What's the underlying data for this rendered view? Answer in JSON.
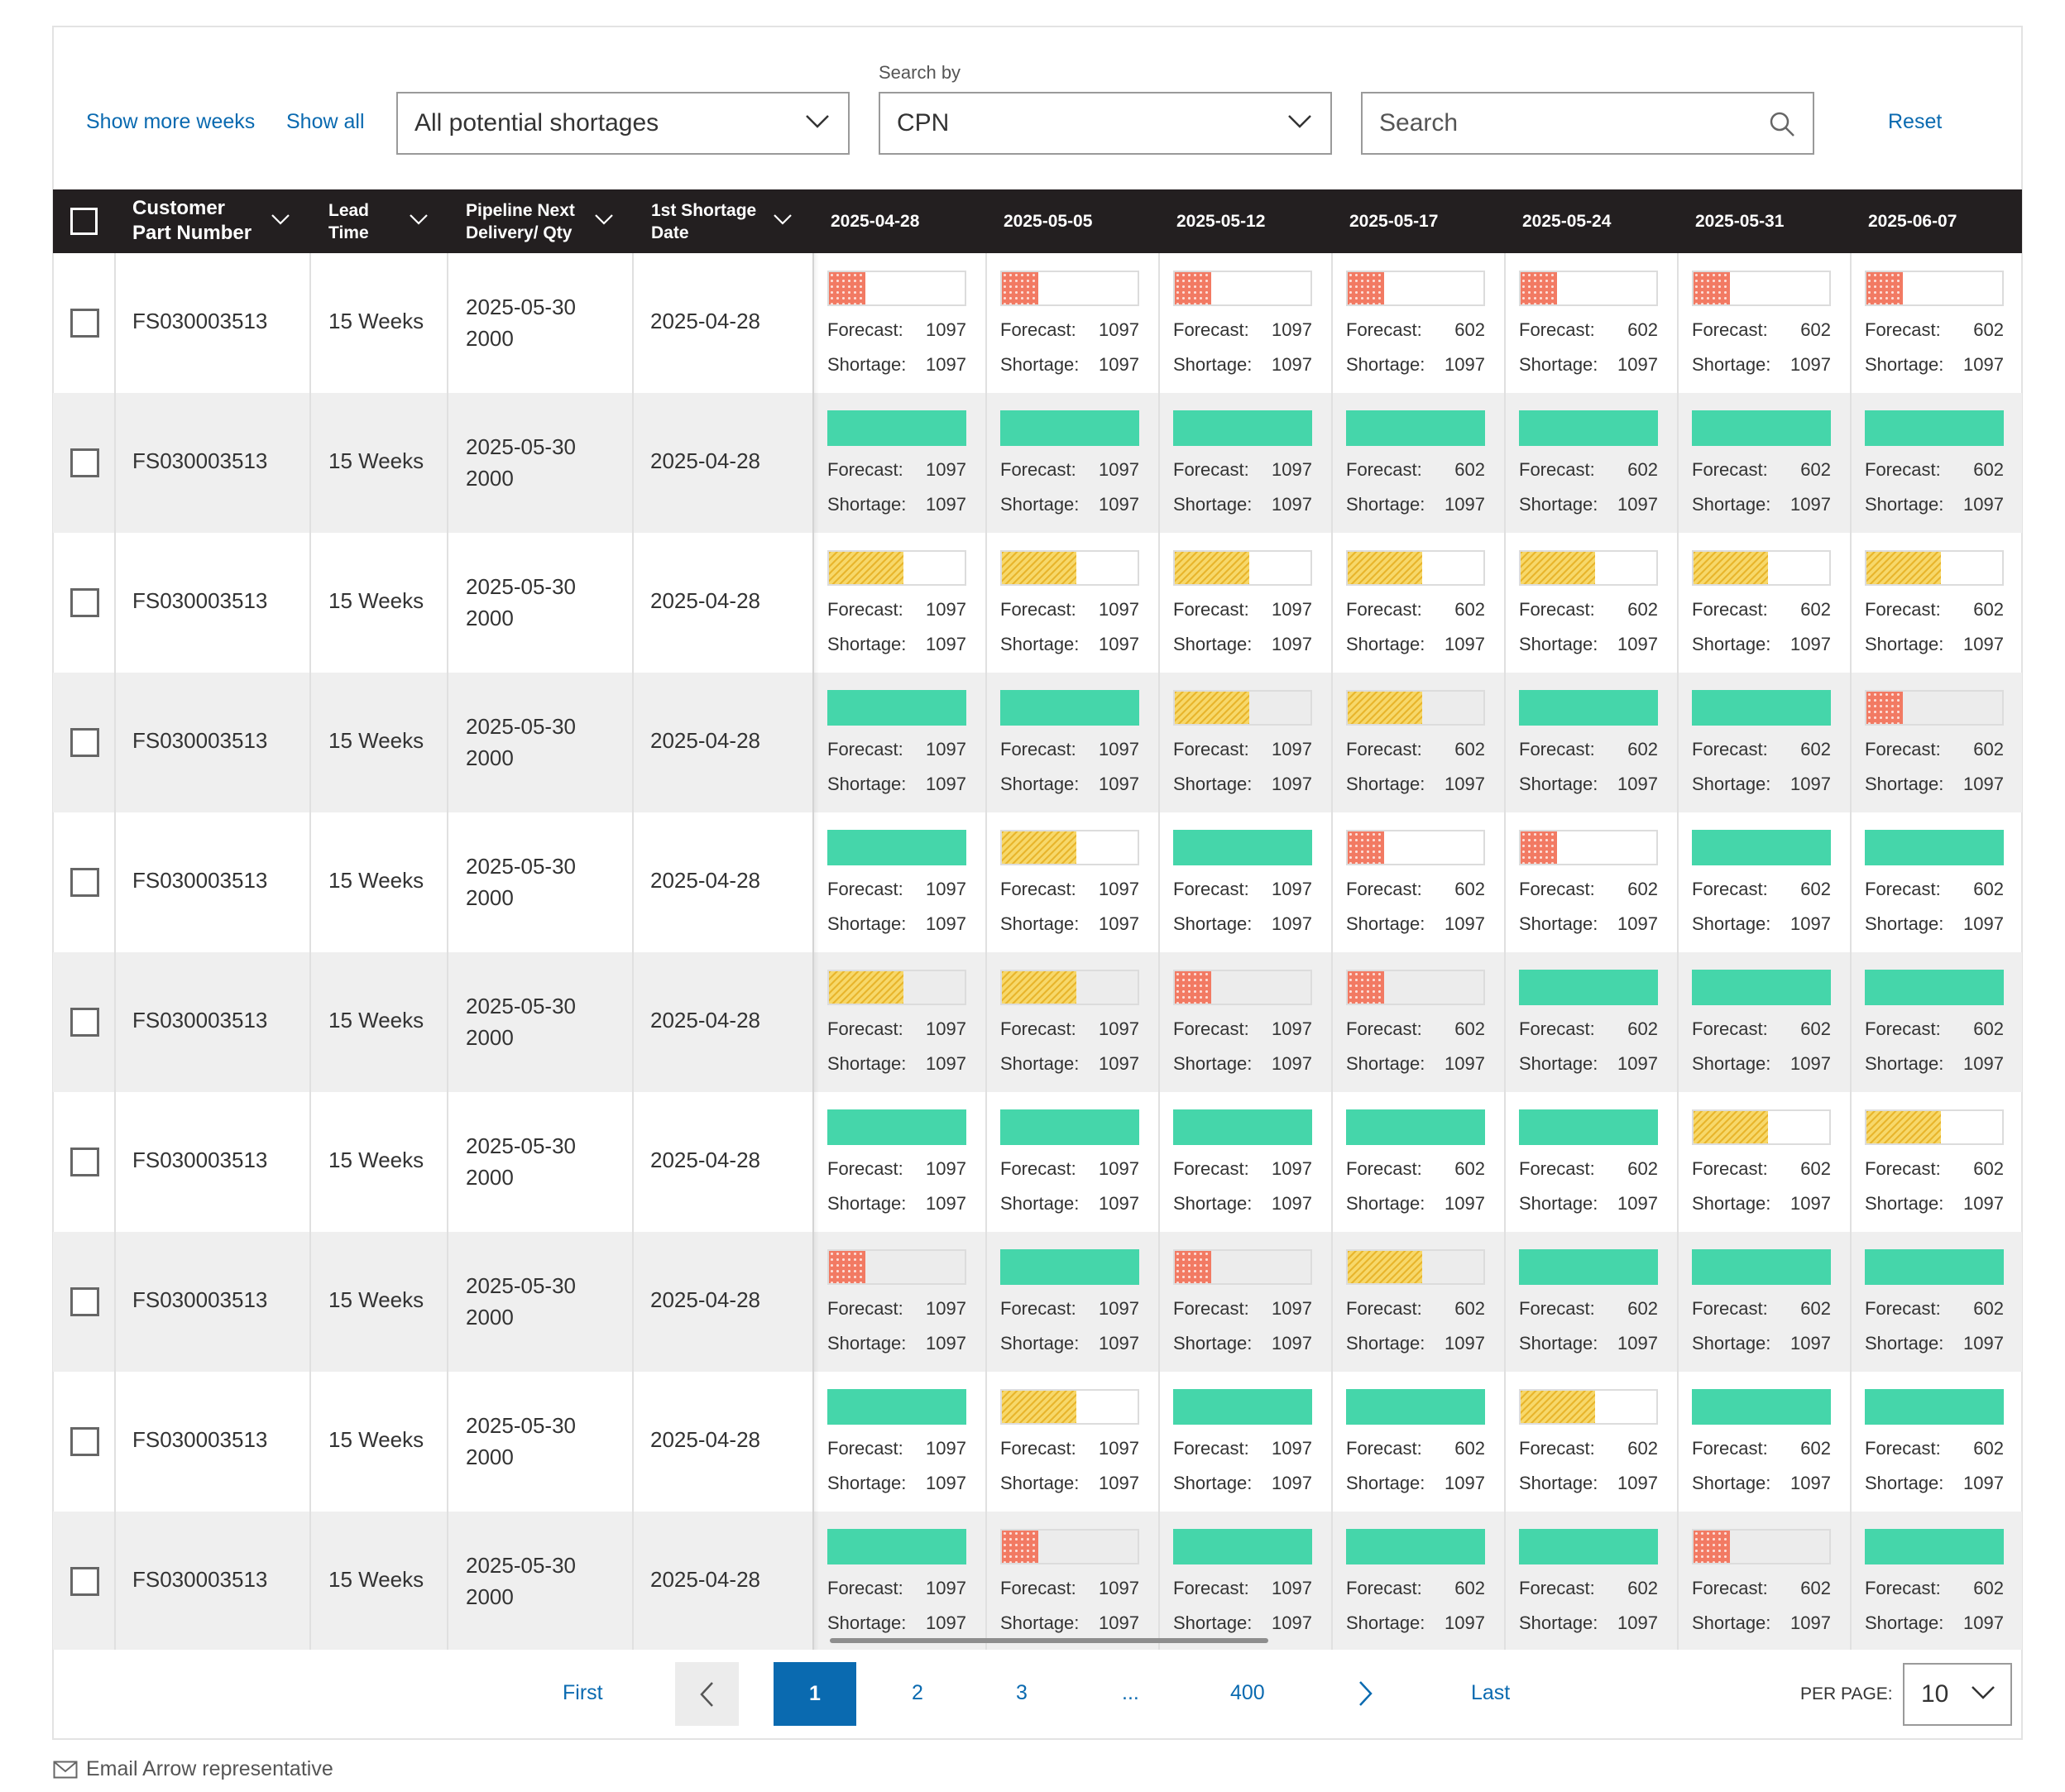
{
  "toolbar": {
    "show_more_weeks": "Show more weeks",
    "show_all": "Show all",
    "filter_select_value": "All potential shortages",
    "search_by_label": "Search by",
    "search_by_value": "CPN",
    "search_placeholder": "Search",
    "reset": "Reset"
  },
  "table": {
    "headers": {
      "cpn_line1": "Customer",
      "cpn_line2": "Part Number",
      "lead_line1": "Lead",
      "lead_line2": "Time",
      "pipeline_line1": "Pipeline Next",
      "pipeline_line2": "Delivery/ Qty",
      "shortage_line1": "1st Shortage",
      "shortage_line2": "Date",
      "weeks": [
        "2025-04-28",
        "2025-05-05",
        "2025-05-12",
        "2025-05-17",
        "2025-05-24",
        "2025-05-31",
        "2025-06-07"
      ]
    },
    "forecast_label": "Forecast:",
    "shortage_label": "Shortage:",
    "status_colors": {
      "green": "#45d6aa",
      "yellow": "#f5c84a",
      "red": "#f27a63"
    },
    "rows": [
      {
        "cpn": "FS030003513",
        "lead": "15 Weeks",
        "pipe_date": "2025-05-30",
        "pipe_qty": "2000",
        "first_shortage": "2025-04-28",
        "weeks": [
          {
            "status": "red",
            "fill": 0.27,
            "forecast": "1097",
            "shortage": "1097"
          },
          {
            "status": "red",
            "fill": 0.27,
            "forecast": "1097",
            "shortage": "1097"
          },
          {
            "status": "red",
            "fill": 0.27,
            "forecast": "1097",
            "shortage": "1097"
          },
          {
            "status": "red",
            "fill": 0.27,
            "forecast": "602",
            "shortage": "1097"
          },
          {
            "status": "red",
            "fill": 0.27,
            "forecast": "602",
            "shortage": "1097"
          },
          {
            "status": "red",
            "fill": 0.27,
            "forecast": "602",
            "shortage": "1097"
          },
          {
            "status": "red",
            "fill": 0.27,
            "forecast": "602",
            "shortage": "1097"
          }
        ]
      },
      {
        "cpn": "FS030003513",
        "lead": "15 Weeks",
        "pipe_date": "2025-05-30",
        "pipe_qty": "2000",
        "first_shortage": "2025-04-28",
        "weeks": [
          {
            "status": "green",
            "fill": 1,
            "forecast": "1097",
            "shortage": "1097"
          },
          {
            "status": "green",
            "fill": 1,
            "forecast": "1097",
            "shortage": "1097"
          },
          {
            "status": "green",
            "fill": 1,
            "forecast": "1097",
            "shortage": "1097"
          },
          {
            "status": "green",
            "fill": 1,
            "forecast": "602",
            "shortage": "1097"
          },
          {
            "status": "green",
            "fill": 1,
            "forecast": "602",
            "shortage": "1097"
          },
          {
            "status": "green",
            "fill": 1,
            "forecast": "602",
            "shortage": "1097"
          },
          {
            "status": "green",
            "fill": 1,
            "forecast": "602",
            "shortage": "1097"
          }
        ]
      },
      {
        "cpn": "FS030003513",
        "lead": "15 Weeks",
        "pipe_date": "2025-05-30",
        "pipe_qty": "2000",
        "first_shortage": "2025-04-28",
        "weeks": [
          {
            "status": "yellow",
            "fill": 0.55,
            "forecast": "1097",
            "shortage": "1097"
          },
          {
            "status": "yellow",
            "fill": 0.55,
            "forecast": "1097",
            "shortage": "1097"
          },
          {
            "status": "yellow",
            "fill": 0.55,
            "forecast": "1097",
            "shortage": "1097"
          },
          {
            "status": "yellow",
            "fill": 0.55,
            "forecast": "602",
            "shortage": "1097"
          },
          {
            "status": "yellow",
            "fill": 0.55,
            "forecast": "602",
            "shortage": "1097"
          },
          {
            "status": "yellow",
            "fill": 0.55,
            "forecast": "602",
            "shortage": "1097"
          },
          {
            "status": "yellow",
            "fill": 0.55,
            "forecast": "602",
            "shortage": "1097"
          }
        ]
      },
      {
        "cpn": "FS030003513",
        "lead": "15 Weeks",
        "pipe_date": "2025-05-30",
        "pipe_qty": "2000",
        "first_shortage": "2025-04-28",
        "weeks": [
          {
            "status": "green",
            "fill": 1,
            "forecast": "1097",
            "shortage": "1097"
          },
          {
            "status": "green",
            "fill": 1,
            "forecast": "1097",
            "shortage": "1097"
          },
          {
            "status": "yellow",
            "fill": 0.55,
            "forecast": "1097",
            "shortage": "1097"
          },
          {
            "status": "yellow",
            "fill": 0.55,
            "forecast": "602",
            "shortage": "1097"
          },
          {
            "status": "green",
            "fill": 1,
            "forecast": "602",
            "shortage": "1097"
          },
          {
            "status": "green",
            "fill": 1,
            "forecast": "602",
            "shortage": "1097"
          },
          {
            "status": "red",
            "fill": 0.27,
            "forecast": "602",
            "shortage": "1097"
          }
        ]
      },
      {
        "cpn": "FS030003513",
        "lead": "15 Weeks",
        "pipe_date": "2025-05-30",
        "pipe_qty": "2000",
        "first_shortage": "2025-04-28",
        "weeks": [
          {
            "status": "green",
            "fill": 1,
            "forecast": "1097",
            "shortage": "1097"
          },
          {
            "status": "yellow",
            "fill": 0.55,
            "forecast": "1097",
            "shortage": "1097"
          },
          {
            "status": "green",
            "fill": 1,
            "forecast": "1097",
            "shortage": "1097"
          },
          {
            "status": "red",
            "fill": 0.27,
            "forecast": "602",
            "shortage": "1097"
          },
          {
            "status": "red",
            "fill": 0.27,
            "forecast": "602",
            "shortage": "1097"
          },
          {
            "status": "green",
            "fill": 1,
            "forecast": "602",
            "shortage": "1097"
          },
          {
            "status": "green",
            "fill": 1,
            "forecast": "602",
            "shortage": "1097"
          }
        ]
      },
      {
        "cpn": "FS030003513",
        "lead": "15 Weeks",
        "pipe_date": "2025-05-30",
        "pipe_qty": "2000",
        "first_shortage": "2025-04-28",
        "weeks": [
          {
            "status": "yellow",
            "fill": 0.55,
            "forecast": "1097",
            "shortage": "1097"
          },
          {
            "status": "yellow",
            "fill": 0.55,
            "forecast": "1097",
            "shortage": "1097"
          },
          {
            "status": "red",
            "fill": 0.27,
            "forecast": "1097",
            "shortage": "1097"
          },
          {
            "status": "red",
            "fill": 0.27,
            "forecast": "602",
            "shortage": "1097"
          },
          {
            "status": "green",
            "fill": 1,
            "forecast": "602",
            "shortage": "1097"
          },
          {
            "status": "green",
            "fill": 1,
            "forecast": "602",
            "shortage": "1097"
          },
          {
            "status": "green",
            "fill": 1,
            "forecast": "602",
            "shortage": "1097"
          }
        ]
      },
      {
        "cpn": "FS030003513",
        "lead": "15 Weeks",
        "pipe_date": "2025-05-30",
        "pipe_qty": "2000",
        "first_shortage": "2025-04-28",
        "weeks": [
          {
            "status": "green",
            "fill": 1,
            "forecast": "1097",
            "shortage": "1097"
          },
          {
            "status": "green",
            "fill": 1,
            "forecast": "1097",
            "shortage": "1097"
          },
          {
            "status": "green",
            "fill": 1,
            "forecast": "1097",
            "shortage": "1097"
          },
          {
            "status": "green",
            "fill": 1,
            "forecast": "602",
            "shortage": "1097"
          },
          {
            "status": "green",
            "fill": 1,
            "forecast": "602",
            "shortage": "1097"
          },
          {
            "status": "yellow",
            "fill": 0.55,
            "forecast": "602",
            "shortage": "1097"
          },
          {
            "status": "yellow",
            "fill": 0.55,
            "forecast": "602",
            "shortage": "1097"
          }
        ]
      },
      {
        "cpn": "FS030003513",
        "lead": "15 Weeks",
        "pipe_date": "2025-05-30",
        "pipe_qty": "2000",
        "first_shortage": "2025-04-28",
        "weeks": [
          {
            "status": "red",
            "fill": 0.27,
            "forecast": "1097",
            "shortage": "1097"
          },
          {
            "status": "green",
            "fill": 1,
            "forecast": "1097",
            "shortage": "1097"
          },
          {
            "status": "red",
            "fill": 0.27,
            "forecast": "1097",
            "shortage": "1097"
          },
          {
            "status": "yellow",
            "fill": 0.55,
            "forecast": "602",
            "shortage": "1097"
          },
          {
            "status": "green",
            "fill": 1,
            "forecast": "602",
            "shortage": "1097"
          },
          {
            "status": "green",
            "fill": 1,
            "forecast": "602",
            "shortage": "1097"
          },
          {
            "status": "green",
            "fill": 1,
            "forecast": "602",
            "shortage": "1097"
          }
        ]
      },
      {
        "cpn": "FS030003513",
        "lead": "15 Weeks",
        "pipe_date": "2025-05-30",
        "pipe_qty": "2000",
        "first_shortage": "2025-04-28",
        "weeks": [
          {
            "status": "green",
            "fill": 1,
            "forecast": "1097",
            "shortage": "1097"
          },
          {
            "status": "yellow",
            "fill": 0.55,
            "forecast": "1097",
            "shortage": "1097"
          },
          {
            "status": "green",
            "fill": 1,
            "forecast": "1097",
            "shortage": "1097"
          },
          {
            "status": "green",
            "fill": 1,
            "forecast": "602",
            "shortage": "1097"
          },
          {
            "status": "yellow",
            "fill": 0.55,
            "forecast": "602",
            "shortage": "1097"
          },
          {
            "status": "green",
            "fill": 1,
            "forecast": "602",
            "shortage": "1097"
          },
          {
            "status": "green",
            "fill": 1,
            "forecast": "602",
            "shortage": "1097"
          }
        ]
      },
      {
        "cpn": "FS030003513",
        "lead": "15 Weeks",
        "pipe_date": "2025-05-30",
        "pipe_qty": "2000",
        "first_shortage": "2025-04-28",
        "weeks": [
          {
            "status": "green",
            "fill": 1,
            "forecast": "1097",
            "shortage": "1097"
          },
          {
            "status": "red",
            "fill": 0.27,
            "forecast": "1097",
            "shortage": "1097"
          },
          {
            "status": "green",
            "fill": 1,
            "forecast": "1097",
            "shortage": "1097"
          },
          {
            "status": "green",
            "fill": 1,
            "forecast": "602",
            "shortage": "1097"
          },
          {
            "status": "green",
            "fill": 1,
            "forecast": "602",
            "shortage": "1097"
          },
          {
            "status": "red",
            "fill": 0.27,
            "forecast": "602",
            "shortage": "1097"
          },
          {
            "status": "green",
            "fill": 1,
            "forecast": "602",
            "shortage": "1097"
          }
        ]
      }
    ]
  },
  "pagination": {
    "first": "First",
    "pages": [
      "1",
      "2",
      "3",
      "...",
      "400"
    ],
    "current": "1",
    "last": "Last",
    "per_page_label": "PER PAGE:",
    "per_page_value": "10"
  },
  "footer": {
    "email_label": "Email Arrow representative"
  },
  "icons": {
    "filter_chevron": "chevron-down-icon",
    "search": "search-icon",
    "prev": "chevron-left-icon",
    "next": "chevron-right-icon",
    "email": "envelope-icon"
  }
}
